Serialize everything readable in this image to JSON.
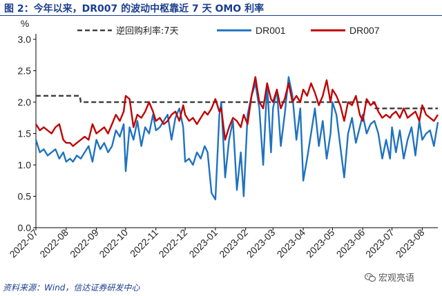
{
  "title": "图 2：今年以来，DR007 的波动中枢靠近 7 天 OMO 利率",
  "source": "资料来源：Wind，信达证券研发中心",
  "watermark": {
    "text": "宏观亮语",
    "icon": "wechat-icon"
  },
  "colors": {
    "omo": "#404040",
    "dr001": "#1f72c0",
    "dr007": "#c00000",
    "title": "#1a3e8f"
  },
  "chart_data": {
    "type": "line",
    "ylabel": "%",
    "ylim": [
      0.0,
      3.0
    ],
    "yticks": [
      "0.0",
      "0.5",
      "1.0",
      "1.5",
      "2.0",
      "2.5",
      "3.0"
    ],
    "xlim": [
      0,
      412
    ],
    "x_unit": "days since 2022-07-01",
    "xtick_labels": [
      "2022-07",
      "2022-08",
      "2022-09",
      "2022-10",
      "2022-11",
      "2022-12",
      "2023-01",
      "2023-02",
      "2023-03",
      "2023-04",
      "2023-05",
      "2023-06",
      "2023-07",
      "2023-08"
    ],
    "xtick_positions": [
      0,
      31,
      62,
      92,
      123,
      153,
      184,
      215,
      243,
      274,
      304,
      335,
      365,
      396
    ],
    "legend_position": "top",
    "series": [
      {
        "name": "逆回购利率:7天",
        "style": "dashed",
        "x": [
          0,
          45,
          46,
          347,
          348,
          412
        ],
        "y": [
          2.1,
          2.1,
          2.0,
          2.0,
          1.9,
          1.9
        ]
      },
      {
        "name": "DR001",
        "style": "solid",
        "x": [
          0,
          4,
          8,
          12,
          16,
          20,
          24,
          28,
          31,
          35,
          38,
          42,
          46,
          50,
          54,
          58,
          62,
          66,
          70,
          74,
          78,
          82,
          86,
          90,
          92,
          96,
          100,
          104,
          108,
          112,
          116,
          120,
          123,
          127,
          131,
          135,
          139,
          143,
          147,
          151,
          153,
          157,
          161,
          165,
          169,
          173,
          176,
          180,
          184,
          188,
          190,
          194,
          198,
          202,
          206,
          210,
          213,
          217,
          221,
          225,
          229,
          233,
          237,
          241,
          243,
          247,
          251,
          255,
          259,
          263,
          267,
          271,
          274,
          278,
          282,
          286,
          290,
          294,
          298,
          302,
          304,
          308,
          312,
          316,
          320,
          324,
          328,
          332,
          335,
          339,
          343,
          347,
          351,
          355,
          359,
          363,
          365,
          369,
          373,
          377,
          381,
          385,
          389,
          393,
          396,
          400,
          404,
          408,
          412
        ],
        "y": [
          1.4,
          1.2,
          1.25,
          1.15,
          1.2,
          1.25,
          1.1,
          1.2,
          1.05,
          1.1,
          1.05,
          1.15,
          1.1,
          1.2,
          1.3,
          1.05,
          1.4,
          1.25,
          1.35,
          1.2,
          1.3,
          1.55,
          1.45,
          1.65,
          0.9,
          1.6,
          1.4,
          1.7,
          1.3,
          1.6,
          1.5,
          1.8,
          1.55,
          1.6,
          1.7,
          1.8,
          1.4,
          1.75,
          1.9,
          1.6,
          1.05,
          1.1,
          1.0,
          1.2,
          1.1,
          1.3,
          1.2,
          0.55,
          0.45,
          1.8,
          2.0,
          0.8,
          1.4,
          1.7,
          0.6,
          1.2,
          0.5,
          1.8,
          2.1,
          2.3,
          1.9,
          1.0,
          2.3,
          1.2,
          1.9,
          2.2,
          1.3,
          1.8,
          2.4,
          2.1,
          1.4,
          1.9,
          0.75,
          1.1,
          1.5,
          1.9,
          1.3,
          1.7,
          1.1,
          1.5,
          2.0,
          1.8,
          1.3,
          0.8,
          1.5,
          1.75,
          1.35,
          1.6,
          1.8,
          1.5,
          1.65,
          1.7,
          1.5,
          1.1,
          1.4,
          1.1,
          1.6,
          1.2,
          1.55,
          1.1,
          1.4,
          1.6,
          1.15,
          1.7,
          1.4,
          1.5,
          1.55,
          1.3,
          1.68
        ]
      },
      {
        "name": "DR007",
        "style": "solid",
        "x": [
          0,
          4,
          8,
          12,
          16,
          20,
          24,
          28,
          31,
          35,
          38,
          42,
          46,
          50,
          54,
          58,
          62,
          66,
          70,
          74,
          78,
          82,
          86,
          90,
          92,
          96,
          100,
          104,
          108,
          112,
          116,
          120,
          123,
          127,
          131,
          135,
          139,
          143,
          147,
          151,
          153,
          157,
          161,
          165,
          169,
          173,
          176,
          180,
          184,
          188,
          190,
          194,
          198,
          202,
          206,
          210,
          213,
          217,
          221,
          225,
          229,
          233,
          237,
          241,
          243,
          247,
          251,
          255,
          259,
          263,
          267,
          271,
          274,
          278,
          282,
          286,
          290,
          294,
          298,
          302,
          304,
          308,
          312,
          316,
          320,
          324,
          328,
          332,
          335,
          339,
          343,
          347,
          351,
          355,
          359,
          363,
          365,
          369,
          373,
          377,
          381,
          385,
          389,
          393,
          396,
          400,
          404,
          408,
          412
        ],
        "y": [
          1.65,
          1.55,
          1.6,
          1.55,
          1.5,
          1.6,
          1.65,
          1.4,
          1.35,
          1.35,
          1.3,
          1.35,
          1.4,
          1.45,
          1.4,
          1.65,
          1.5,
          1.55,
          1.6,
          1.5,
          1.65,
          1.8,
          1.7,
          1.85,
          2.1,
          2.05,
          1.6,
          1.8,
          1.75,
          1.85,
          2.0,
          1.85,
          1.7,
          1.75,
          1.65,
          1.7,
          1.8,
          1.85,
          1.7,
          1.95,
          1.8,
          1.7,
          1.75,
          1.65,
          1.75,
          1.85,
          1.8,
          1.9,
          2.05,
          1.85,
          1.9,
          1.4,
          1.6,
          1.75,
          1.7,
          1.6,
          1.8,
          1.65,
          2.1,
          2.4,
          2.0,
          1.9,
          2.3,
          2.05,
          2.0,
          2.2,
          1.9,
          2.05,
          2.3,
          2.0,
          2.1,
          2.0,
          2.2,
          2.1,
          2.3,
          2.15,
          1.95,
          2.1,
          2.35,
          2.0,
          2.2,
          2.1,
          1.95,
          1.7,
          2.0,
          1.95,
          2.1,
          1.8,
          1.7,
          2.05,
          1.95,
          2.0,
          1.85,
          1.75,
          1.8,
          1.75,
          1.8,
          1.85,
          1.75,
          1.9,
          1.75,
          1.8,
          1.85,
          1.7,
          1.95,
          1.8,
          1.75,
          1.7,
          1.8
        ]
      }
    ]
  }
}
